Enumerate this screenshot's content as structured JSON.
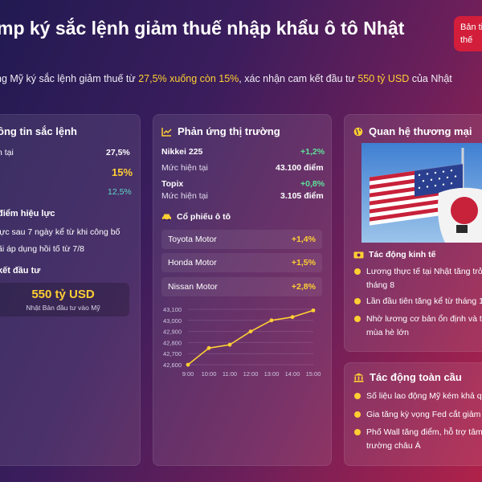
{
  "header": {
    "title": "mp ký sắc lệnh giảm thuế nhập khẩu ô tô Nhật",
    "badge": "Bản tin thế",
    "subtitle_pre": "ng Mỹ ký sắc lệnh giảm thuế từ ",
    "subtitle_hl1": "27,5% xuống còn 15%",
    "subtitle_mid": ", xác nhận cam kết đầu tư ",
    "subtitle_hl2": "550 tỷ USD",
    "subtitle_post": " của Nhật"
  },
  "left_card": {
    "title": "ông tin sắc lệnh",
    "rows": [
      {
        "label": "n tại",
        "value": "27,5%"
      },
      {
        "label": "i",
        "value": "15%"
      },
      {
        "label": "",
        "value": "12,5%"
      }
    ],
    "effective_title": "điểm hiệu lực",
    "effective_items": [
      "lực sau 7 ngày kể từ khi công bố",
      "ãi áp dụng hồi tố từ 7/8"
    ],
    "invest_title": "kết đầu tư",
    "invest_amount": "550 tỷ USD",
    "invest_caption": "Nhật Bản đầu tư vào Mỹ"
  },
  "market_card": {
    "title": "Phản ứng thị trường",
    "icon": "chart-line-icon",
    "nikkei_name": "Nikkei 225",
    "nikkei_change": "+1,2%",
    "nikkei_level_label": "Mức hiện tại",
    "nikkei_level": "43.100 điểm",
    "topix_name": "Topix",
    "topix_change": "+0,8%",
    "topix_level_label": "Mức hiện tại",
    "topix_level": "3.105 điểm",
    "auto_title": "Cổ phiếu ô tô",
    "auto_icon": "car-icon",
    "stocks": [
      {
        "name": "Toyota Motor",
        "change": "+1,4%"
      },
      {
        "name": "Honda Motor",
        "change": "+1,5%"
      },
      {
        "name": "Nissan Motor",
        "change": "+2,8%"
      }
    ]
  },
  "chart_data": {
    "type": "line",
    "x": [
      "9:00",
      "10:00",
      "11:00",
      "12:00",
      "13:00",
      "14:00",
      "15:00"
    ],
    "series": [
      {
        "values": [
          42600,
          42750,
          42780,
          42900,
          43000,
          43030,
          43090
        ]
      }
    ],
    "yticks": [
      "43,100",
      "43,000",
      "42,900",
      "42,800",
      "42,700",
      "42,600"
    ],
    "ylim": [
      42600,
      43100
    ],
    "color": "#ffcf33"
  },
  "trade_card": {
    "title": "Quan hệ thương mại",
    "icon": "globe-icon",
    "econ_title": "Tác động kinh tế",
    "econ_icon": "money-icon",
    "econ_items": [
      "Lương thực tế tại Nhật tăng trở lạ",
      "tháng 8",
      "Lần đầu tiên tăng kể từ tháng 12",
      "Nhờ lương cơ bản ổn định và tiền",
      "mùa hè lớn"
    ]
  },
  "global_card": {
    "title": "Tác động toàn cầu",
    "icon": "bank-icon",
    "items": [
      "Số liệu lao động Mỹ kém khả qua",
      "Gia tăng kỳ vọng Fed cắt giảm lãi",
      "Phố Wall tăng điểm, hỗ trợ tâm lý",
      "trường châu Á"
    ]
  },
  "colors": {
    "accent": "#ffcf33",
    "positive": "#5fe09a",
    "badge": "#d21e3a"
  }
}
